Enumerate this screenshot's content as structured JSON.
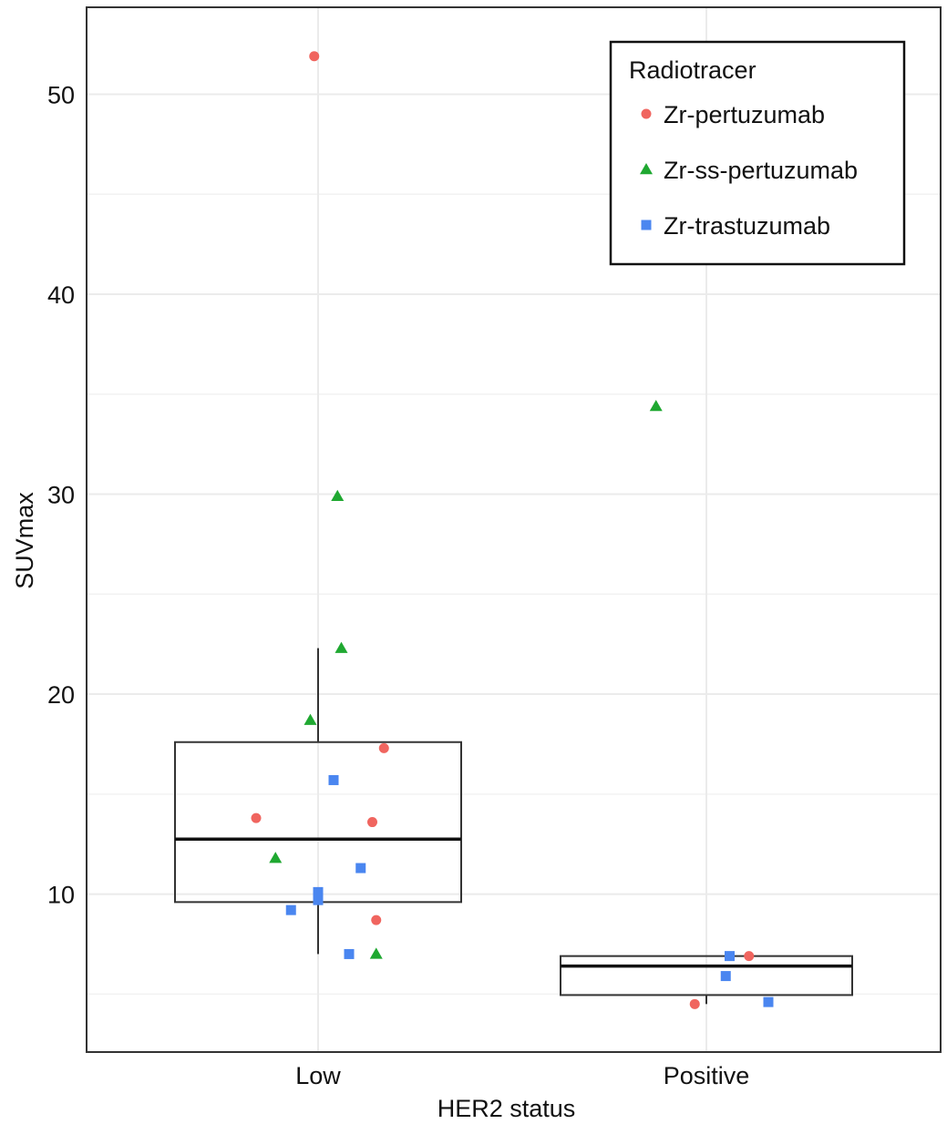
{
  "chart_data": {
    "type": "boxplot",
    "title": "",
    "xlabel": "HER2 status",
    "ylabel": "SUVmax",
    "categories": [
      "Low",
      "Positive"
    ],
    "ylim": [
      2.1,
      54.35
    ],
    "yticks": [
      10,
      20,
      30,
      40,
      50
    ],
    "ytick_labels": [
      "10",
      "20",
      "30",
      "40",
      "50"
    ],
    "grid": true,
    "legend": {
      "title": "Radiotracer",
      "position": "top-right",
      "entries": [
        "Zr-pertuzumab",
        "Zr-ss-pertuzumab",
        "Zr-trastuzumab"
      ]
    },
    "colors": {
      "Zr-pertuzumab": "#f0655f",
      "Zr-ss-pertuzumab": "#1fa831",
      "Zr-trastuzumab": "#4a86f0"
    },
    "boxes": [
      {
        "category": "Low",
        "whisker_low": 7.0,
        "q1": 9.6,
        "median": 12.75,
        "q3": 17.6,
        "whisker_high": 22.3
      },
      {
        "category": "Positive",
        "whisker_low": 4.5,
        "q1": 4.95,
        "median": 6.4,
        "q3": 6.9,
        "whisker_high": 6.9
      }
    ],
    "series": [
      {
        "name": "Zr-pertuzumab",
        "shape": "circle",
        "points": [
          {
            "category": "Low",
            "jitter": -0.01,
            "y": 51.9
          },
          {
            "category": "Low",
            "jitter": 0.17,
            "y": 17.3
          },
          {
            "category": "Low",
            "jitter": -0.16,
            "y": 13.8
          },
          {
            "category": "Low",
            "jitter": 0.14,
            "y": 13.6
          },
          {
            "category": "Low",
            "jitter": 0.15,
            "y": 8.7
          },
          {
            "category": "Positive",
            "jitter": 0.11,
            "y": 6.9
          },
          {
            "category": "Positive",
            "jitter": -0.03,
            "y": 4.5
          }
        ]
      },
      {
        "name": "Zr-ss-pertuzumab",
        "shape": "triangle",
        "points": [
          {
            "category": "Low",
            "jitter": 0.05,
            "y": 29.9
          },
          {
            "category": "Low",
            "jitter": 0.06,
            "y": 22.3
          },
          {
            "category": "Low",
            "jitter": -0.02,
            "y": 18.7
          },
          {
            "category": "Low",
            "jitter": -0.11,
            "y": 11.8
          },
          {
            "category": "Low",
            "jitter": 0.15,
            "y": 7.0
          },
          {
            "category": "Positive",
            "jitter": -0.13,
            "y": 34.4
          }
        ]
      },
      {
        "name": "Zr-trastuzumab",
        "shape": "square",
        "points": [
          {
            "category": "Low",
            "jitter": 0.04,
            "y": 15.7
          },
          {
            "category": "Low",
            "jitter": 0.11,
            "y": 11.3
          },
          {
            "category": "Low",
            "jitter": 0.0,
            "y": 10.1
          },
          {
            "category": "Low",
            "jitter": 0.0,
            "y": 9.7
          },
          {
            "category": "Low",
            "jitter": -0.07,
            "y": 9.2
          },
          {
            "category": "Low",
            "jitter": 0.08,
            "y": 7.0
          },
          {
            "category": "Positive",
            "jitter": 0.06,
            "y": 6.9
          },
          {
            "category": "Positive",
            "jitter": 0.05,
            "y": 5.9
          },
          {
            "category": "Positive",
            "jitter": 0.16,
            "y": 4.6
          }
        ]
      }
    ]
  }
}
